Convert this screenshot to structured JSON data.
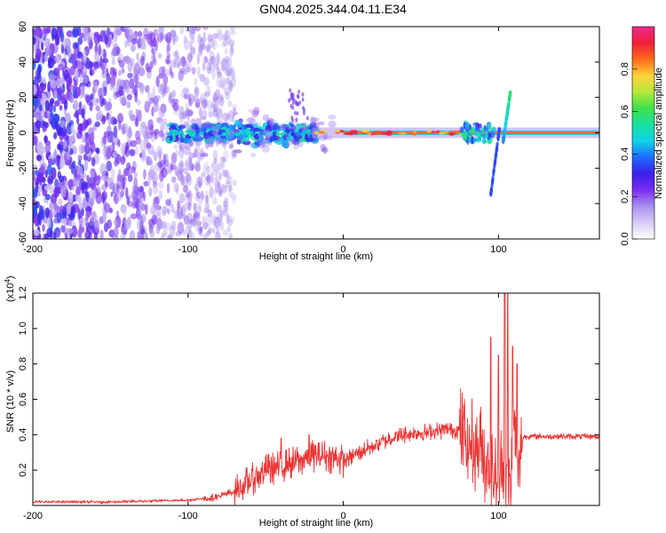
{
  "title": "GN04.2025.344.04.11.E34",
  "colorbar": {
    "label": "Normalized spectral amplitude",
    "ticks": [
      "0.0",
      "0.2",
      "0.4",
      "0.6",
      "0.8"
    ],
    "tick_values": [
      0.0,
      0.2,
      0.4,
      0.6,
      0.8
    ],
    "range": [
      0,
      1
    ],
    "colormap": [
      "#ffffff",
      "#d9ccf5",
      "#a98ff0",
      "#7b2cf0",
      "#3b1ee8",
      "#1f6bff",
      "#12d3e6",
      "#18e0a0",
      "#3fe04a",
      "#b6e83a",
      "#ffd23a",
      "#ff6a1a",
      "#ee1f3a",
      "#ee2a8c"
    ]
  },
  "chart_data": [
    {
      "type": "heatmap",
      "title": "GN04.2025.344.04.11.E34",
      "xlabel": "Height of straight line (km)",
      "ylabel": "Frequency (Hz)",
      "xlim": [
        -200,
        165
      ],
      "ylim": [
        -60,
        60
      ],
      "xticks": [
        "-200",
        "-100",
        "0",
        "100"
      ],
      "xtick_values": [
        -200,
        -100,
        0,
        100
      ],
      "yticks": [
        "-60",
        "-40",
        "-20",
        "0",
        "20",
        "40",
        "60"
      ],
      "ytick_values": [
        -60,
        -40,
        -20,
        0,
        20,
        40,
        60
      ],
      "regions": [
        {
          "x": [
            -200,
            -85
          ],
          "y": [
            -60,
            60
          ],
          "amplitude": 0.15
        },
        {
          "x": [
            -110,
            -20
          ],
          "y": [
            -5,
            5
          ],
          "amplitude": 0.4
        },
        {
          "x": [
            0,
            165
          ],
          "y": [
            -1,
            1
          ],
          "amplitude": 0.9
        },
        {
          "x": [
            95,
            108
          ],
          "y": [
            -35,
            25
          ],
          "amplitude": 0.3
        }
      ]
    },
    {
      "type": "line",
      "xlabel": "Height of straight line (km)",
      "ylabel": "SNR (10 * v/v)",
      "multiplier_label": "(x10",
      "multiplier_exp": "4",
      "multiplier_close": ")",
      "xlim": [
        -200,
        165
      ],
      "ylim": [
        0,
        1.2
      ],
      "xticks": [
        "-200",
        "-100",
        "0",
        "100"
      ],
      "xtick_values": [
        -200,
        -100,
        0,
        100
      ],
      "yticks": [
        "0.2",
        "0.4",
        "0.6",
        "0.8",
        "1.0",
        "1.2"
      ],
      "ytick_values": [
        0.2,
        0.4,
        0.6,
        0.8,
        1.0,
        1.2
      ],
      "series": [
        {
          "color": "#ee3333",
          "x": [
            -200,
            -150,
            -100,
            -80,
            -70,
            -60,
            -50,
            -40,
            -30,
            -20,
            -10,
            0,
            10,
            20,
            30,
            40,
            50,
            60,
            70,
            75,
            80,
            85,
            90,
            95,
            100,
            103,
            106,
            108,
            110,
            112,
            114,
            116,
            120,
            130,
            140,
            150,
            165
          ],
          "y": [
            0.02,
            0.02,
            0.03,
            0.05,
            0.08,
            0.14,
            0.2,
            0.22,
            0.25,
            0.28,
            0.28,
            0.25,
            0.3,
            0.34,
            0.38,
            0.4,
            0.41,
            0.42,
            0.43,
            0.42,
            0.36,
            0.34,
            0.3,
            0.18,
            0.12,
            0.3,
            0.08,
            0.12,
            0.5,
            0.15,
            0.25,
            0.39,
            0.39,
            0.39,
            0.39,
            0.39,
            0.39
          ],
          "spikes": [
            [
              -40,
              0.38
            ],
            [
              -22,
              0.4
            ],
            [
              95,
              0.95
            ],
            [
              100,
              0.85
            ],
            [
              104,
              1.2
            ],
            [
              106,
              1.2
            ],
            [
              109,
              0.9
            ],
            [
              112,
              0.8
            ]
          ]
        }
      ]
    }
  ]
}
